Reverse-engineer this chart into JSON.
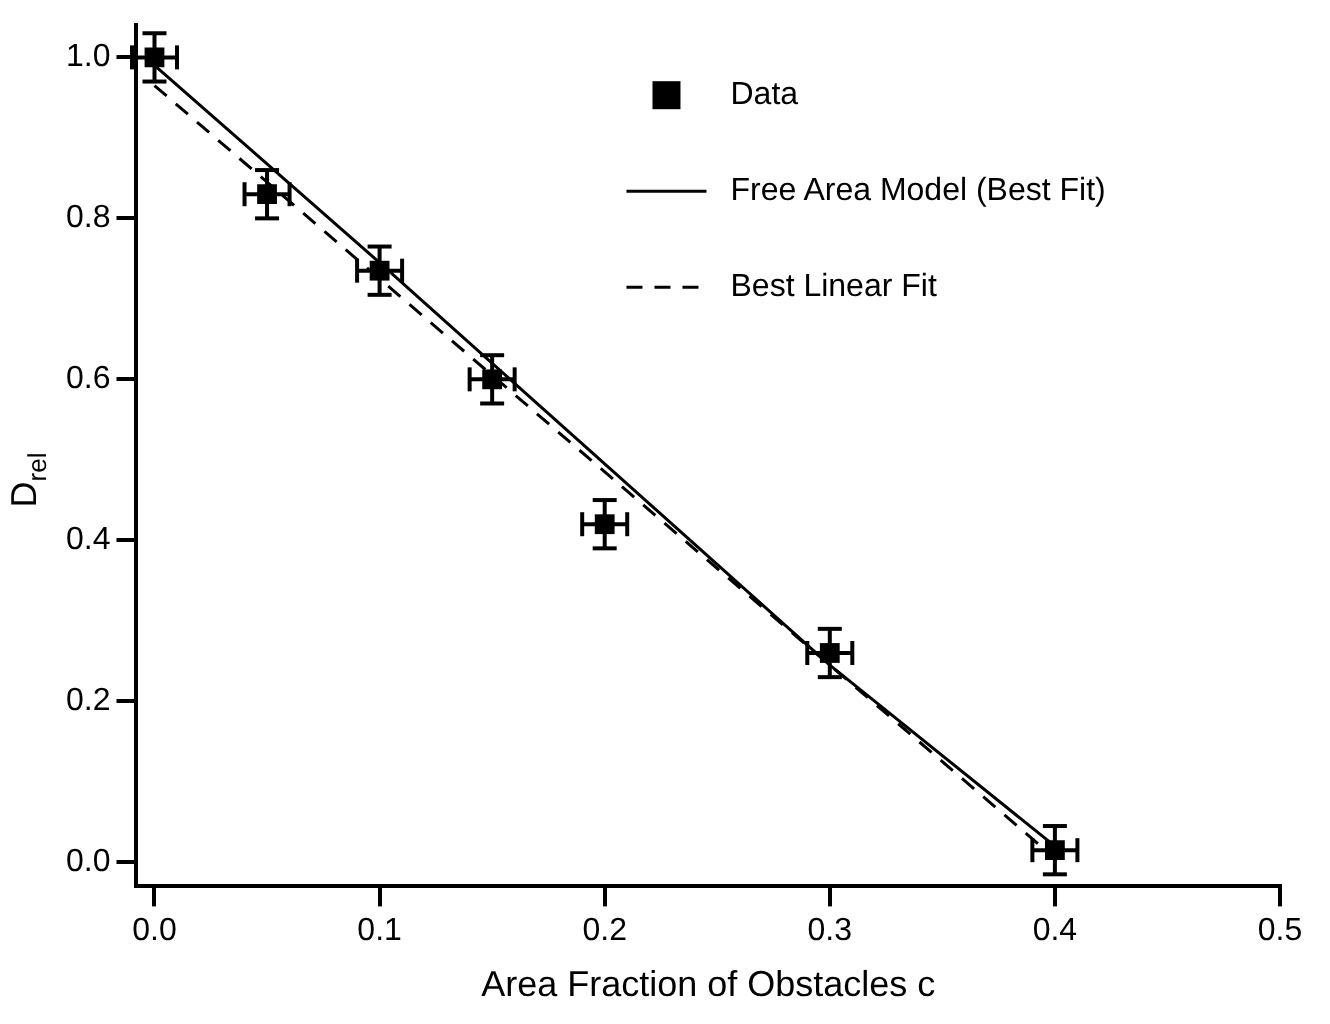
{
  "chart_data": {
    "type": "scatter",
    "xlabel": "Area Fraction of Obstacles c",
    "ylabel": "D$_{rel}$",
    "xlim": [
      -0.008,
      0.5
    ],
    "xticks": [
      {
        "value": 0,
        "label": "0.0"
      },
      0.1,
      0.2,
      0.3,
      0.4,
      0.5
    ],
    "ylim": [
      -0.03,
      1.04
    ],
    "yticks": [
      {
        "value": 0,
        "label": "0.0"
      },
      0.2,
      0.4,
      0.6,
      0.8,
      {
        "value": 1,
        "label": "1.0"
      }
    ],
    "grid": false,
    "legend": "top right",
    "series": [
      {
        "name": "Data",
        "color": "#000000",
        "marker": "square",
        "x": [
          0,
          0.05,
          0.1,
          0.15,
          0.2,
          0.3,
          0.4
        ],
        "values": [
          1.0,
          0.83,
          0.735,
          0.6,
          0.42,
          0.26,
          0.015
        ],
        "errors": [
          0.03,
          0.03,
          0.03,
          0.03,
          0.03,
          0.03,
          0.03
        ],
        "xerrors": [
          0.01,
          0.01,
          0.01,
          0.01,
          0.01,
          0.01,
          0.01
        ]
      },
      {
        "name": "Free Area Model (Best Fit)",
        "type": "line",
        "color": "#000000",
        "line_style": "solid",
        "marker": "none",
        "x": [
          0,
          0.1,
          0.2,
          0.3,
          0.4
        ],
        "values": [
          0.99,
          0.745,
          0.495,
          0.245,
          0.02
        ]
      },
      {
        "name": "Best Linear Fit",
        "type": "line",
        "color": "#000000",
        "line_style": "dashed",
        "marker": "none",
        "x": [
          0,
          0.4
        ],
        "values": [
          0.965,
          0.005
        ]
      }
    ]
  }
}
